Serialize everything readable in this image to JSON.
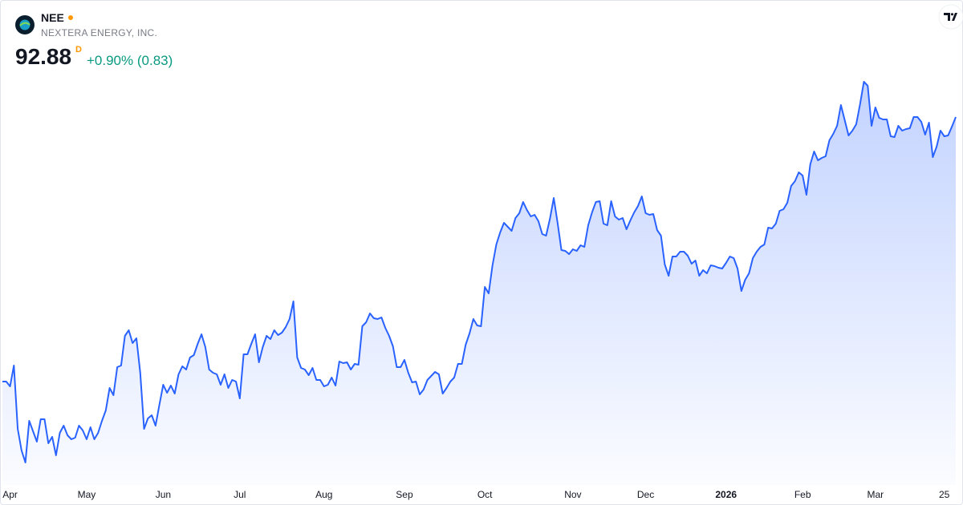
{
  "header": {
    "symbol": "NEE",
    "name": "NEXTERA ENERGY, INC.",
    "price": "92.88",
    "interval": "D",
    "change": "+0.90% (0.83)"
  },
  "chart_data": {
    "type": "area",
    "color": "#2962ff",
    "values": [
      69.78,
      69.78,
      69.36,
      71.18,
      65.65,
      63.76,
      62.71,
      66.35,
      65.44,
      64.53,
      66.49,
      66.49,
      64.39,
      64.95,
      63.34,
      65.3,
      65.93,
      65.09,
      64.74,
      64.88,
      65.93,
      65.51,
      64.74,
      65.79,
      64.74,
      65.3,
      66.35,
      67.26,
      69.22,
      68.59,
      71.04,
      71.18,
      73.77,
      74.26,
      73.14,
      73.56,
      70.55,
      65.65,
      66.56,
      66.84,
      65.93,
      67.75,
      69.5,
      68.8,
      69.43,
      68.73,
      70.41,
      71.11,
      70.83,
      71.88,
      72.09,
      73.07,
      73.91,
      72.79,
      70.83,
      70.55,
      70.41,
      69.5,
      70.41,
      69.22,
      69.92,
      69.78,
      68.31,
      72.16,
      72.16,
      73.07,
      73.91,
      71.46,
      72.79,
      73.77,
      73.49,
      74.26,
      73.84,
      74.05,
      74.54,
      75.24,
      76.78,
      71.88,
      70.97,
      70.83,
      70.34,
      70.97,
      69.92,
      69.92,
      69.36,
      69.5,
      70.13,
      69.43,
      71.53,
      71.39,
      71.46,
      70.83,
      71.32,
      71.25,
      74.61,
      74.96,
      75.73,
      75.31,
      75.24,
      75.38,
      74.47,
      73.77,
      72.86,
      71.04,
      71.04,
      71.67,
      70.55,
      69.71,
      69.78,
      68.66,
      69.08,
      69.92,
      70.27,
      70.62,
      70.41,
      68.73,
      69.22,
      69.78,
      70.13,
      71.32,
      71.32,
      73.0,
      73.98,
      75.24,
      74.68,
      74.61,
      78.04,
      77.48,
      79.93,
      81.75,
      82.8,
      83.64,
      83.29,
      82.94,
      84.06,
      84.48,
      85.46,
      84.76,
      84.2,
      84.34,
      83.78,
      82.66,
      82.52,
      83.99,
      85.81,
      83.64,
      81.26,
      81.19,
      80.91,
      81.33,
      81.19,
      81.68,
      81.54,
      83.43,
      84.55,
      85.46,
      85.53,
      83.57,
      83.43,
      85.53,
      84.2,
      83.92,
      84.06,
      83.08,
      83.85,
      84.55,
      85.11,
      85.95,
      84.48,
      84.34,
      84.41,
      83.01,
      82.52,
      80.0,
      79.02,
      80.7,
      80.7,
      81.12,
      81.12,
      80.77,
      80.07,
      80.35,
      79.02,
      79.51,
      79.23,
      79.93,
      79.86,
      79.72,
      79.65,
      80.14,
      80.7,
      80.56,
      79.65,
      77.69,
      78.67,
      79.23,
      80.56,
      81.12,
      81.54,
      81.75,
      83.22,
      83.15,
      83.57,
      84.69,
      84.83,
      85.39,
      86.86,
      87.28,
      88.05,
      87.77,
      86.09,
      88.75,
      89.87,
      89.1,
      89.31,
      89.45,
      90.85,
      91.41,
      92.11,
      93.93,
      92.6,
      91.27,
      91.69,
      92.25,
      94.0,
      95.96,
      95.61,
      92.11,
      93.72,
      92.81,
      92.67,
      92.67,
      91.2,
      91.13,
      92.11,
      91.69,
      91.83,
      91.9,
      92.88,
      92.88,
      92.46,
      91.34,
      92.39,
      89.38,
      90.29,
      91.69,
      91.2,
      91.27,
      92.05,
      92.88
    ],
    "xticks": [
      {
        "value": 2,
        "label": "Apr"
      },
      {
        "value": 22,
        "label": "May"
      },
      {
        "value": 42,
        "label": "Jun"
      },
      {
        "value": 62,
        "label": "Jul"
      },
      {
        "value": 84,
        "label": "Aug"
      },
      {
        "value": 105,
        "label": "Sep"
      },
      {
        "value": 126,
        "label": "Oct"
      },
      {
        "value": 149,
        "label": "Nov"
      },
      {
        "value": 168,
        "label": "Dec"
      },
      {
        "value": 189,
        "label": "2026",
        "bold": true
      },
      {
        "value": 209,
        "label": "Feb"
      },
      {
        "value": 228,
        "label": "Mar"
      },
      {
        "value": 246,
        "label": "25"
      }
    ]
  }
}
